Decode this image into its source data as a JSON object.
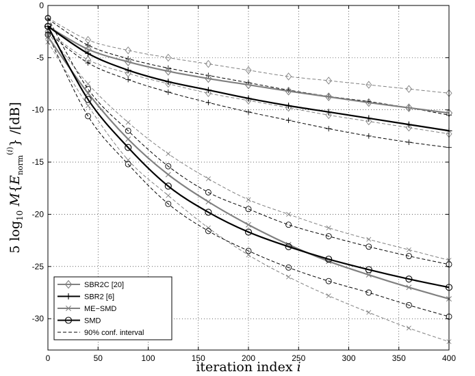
{
  "chart_data": {
    "type": "line",
    "xlabel": "iteration index i",
    "ylabel": "5 log10 M{E_norm^(i)} /[dB]",
    "xlim": [
      0,
      400
    ],
    "ylim": [
      -33,
      0
    ],
    "grid": true,
    "x_ticks": [
      0,
      50,
      100,
      150,
      200,
      250,
      300,
      350,
      400
    ],
    "y_ticks": [
      0,
      -5,
      -10,
      -15,
      -20,
      -25,
      -30
    ],
    "legend_position": "bottom-left",
    "legend": [
      {
        "label": "SBR2C [20]",
        "marker": "diamond",
        "style": "solid",
        "color": "#808080"
      },
      {
        "label": "SBR2 [6]",
        "marker": "plus",
        "style": "solid",
        "color": "#000000"
      },
      {
        "label": "ME−SMD",
        "marker": "x",
        "style": "solid",
        "color": "#808080"
      },
      {
        "label": "SMD",
        "marker": "circle",
        "style": "solid",
        "color": "#000000"
      },
      {
        "label": "90% conf. interval",
        "marker": "none",
        "style": "dashed",
        "color": "#000000"
      }
    ],
    "series": [
      {
        "name": "SBR2C [20]",
        "color": "#808080",
        "marker": "diamond",
        "dash": false,
        "width": 2.2,
        "x": [
          0,
          40,
          80,
          120,
          160,
          200,
          240,
          280,
          320,
          360,
          400
        ],
        "y": [
          -2,
          -4.2,
          -5.4,
          -6.3,
          -7.0,
          -7.6,
          -8.2,
          -8.75,
          -9.3,
          -9.8,
          -10.3
        ]
      },
      {
        "name": "SBR2C [20] upper",
        "color": "#808080",
        "marker": "diamond",
        "dash": true,
        "width": 1,
        "x": [
          0,
          40,
          80,
          120,
          160,
          200,
          240,
          280,
          320,
          360,
          400
        ],
        "y": [
          -1.2,
          -3.3,
          -4.3,
          -5.0,
          -5.6,
          -6.2,
          -6.8,
          -7.2,
          -7.6,
          -8.0,
          -8.4
        ]
      },
      {
        "name": "SBR2C [20] lower",
        "color": "#808080",
        "marker": "diamond",
        "dash": true,
        "width": 1,
        "x": [
          0,
          40,
          80,
          120,
          160,
          200,
          240,
          280,
          320,
          360,
          400
        ],
        "y": [
          -2.5,
          -5.2,
          -6.5,
          -7.5,
          -8.4,
          -9.1,
          -9.8,
          -10.5,
          -11.1,
          -11.7,
          -12.3
        ]
      },
      {
        "name": "SBR2 [6]",
        "color": "#000000",
        "marker": "plus",
        "dash": false,
        "width": 2.2,
        "x": [
          0,
          40,
          80,
          120,
          160,
          200,
          240,
          280,
          320,
          360,
          400
        ],
        "y": [
          -2,
          -4.6,
          -6.2,
          -7.3,
          -8.1,
          -8.9,
          -9.6,
          -10.2,
          -10.8,
          -11.4,
          -12.0
        ]
      },
      {
        "name": "SBR2 [6] upper",
        "color": "#000000",
        "marker": "plus",
        "dash": true,
        "width": 1,
        "x": [
          0,
          40,
          80,
          120,
          160,
          200,
          240,
          280,
          320,
          360,
          400
        ],
        "y": [
          -1.3,
          -3.8,
          -5.1,
          -6.0,
          -6.7,
          -7.4,
          -8.1,
          -8.7,
          -9.2,
          -9.8,
          -10.5
        ]
      },
      {
        "name": "SBR2 [6] lower",
        "color": "#000000",
        "marker": "plus",
        "dash": true,
        "width": 1,
        "x": [
          0,
          40,
          80,
          120,
          160,
          200,
          240,
          280,
          320,
          360,
          400
        ],
        "y": [
          -2.6,
          -5.5,
          -7.1,
          -8.3,
          -9.3,
          -10.2,
          -11.0,
          -11.8,
          -12.5,
          -13.1,
          -13.6
        ]
      },
      {
        "name": "ME−SMD",
        "color": "#808080",
        "marker": "x",
        "dash": false,
        "width": 2.2,
        "x": [
          0,
          40,
          80,
          120,
          160,
          200,
          240,
          280,
          320,
          360,
          400
        ],
        "y": [
          -3.0,
          -8.4,
          -12.8,
          -16.2,
          -18.8,
          -21.0,
          -22.9,
          -24.5,
          -25.8,
          -27.0,
          -28.1
        ]
      },
      {
        "name": "ME−SMD upper",
        "color": "#808080",
        "marker": "x",
        "dash": true,
        "width": 1,
        "x": [
          0,
          40,
          80,
          120,
          160,
          200,
          240,
          280,
          320,
          360,
          400
        ],
        "y": [
          -2.6,
          -7.5,
          -11.2,
          -14.2,
          -16.6,
          -18.6,
          -20.0,
          -21.3,
          -22.4,
          -23.4,
          -24.4
        ]
      },
      {
        "name": "ME−SMD lower",
        "color": "#808080",
        "marker": "x",
        "dash": true,
        "width": 1,
        "x": [
          0,
          40,
          80,
          120,
          160,
          200,
          240,
          280,
          320,
          360,
          400
        ],
        "y": [
          -3.5,
          -9.6,
          -14.8,
          -18.2,
          -21.3,
          -23.9,
          -26.0,
          -27.8,
          -29.4,
          -30.9,
          -32.2
        ]
      },
      {
        "name": "SMD",
        "color": "#000000",
        "marker": "circle",
        "dash": false,
        "width": 2.2,
        "x": [
          0,
          40,
          80,
          120,
          160,
          200,
          240,
          280,
          320,
          360,
          400
        ],
        "y": [
          -2.0,
          -9.0,
          -13.6,
          -17.3,
          -19.8,
          -21.7,
          -23.1,
          -24.3,
          -25.3,
          -26.2,
          -27.0
        ]
      },
      {
        "name": "SMD upper",
        "color": "#000000",
        "marker": "circle",
        "dash": true,
        "width": 1,
        "x": [
          0,
          40,
          80,
          120,
          160,
          200,
          240,
          280,
          320,
          360,
          400
        ],
        "y": [
          -1.2,
          -8.0,
          -12.0,
          -15.4,
          -17.9,
          -19.5,
          -21.0,
          -22.1,
          -23.1,
          -24.0,
          -24.8
        ]
      },
      {
        "name": "SMD lower",
        "color": "#000000",
        "marker": "circle",
        "dash": true,
        "width": 1,
        "x": [
          0,
          40,
          80,
          120,
          160,
          200,
          240,
          280,
          320,
          360,
          400
        ],
        "y": [
          -2.8,
          -10.6,
          -15.2,
          -19.0,
          -21.6,
          -23.5,
          -25.1,
          -26.4,
          -27.5,
          -28.7,
          -29.8
        ]
      }
    ]
  }
}
